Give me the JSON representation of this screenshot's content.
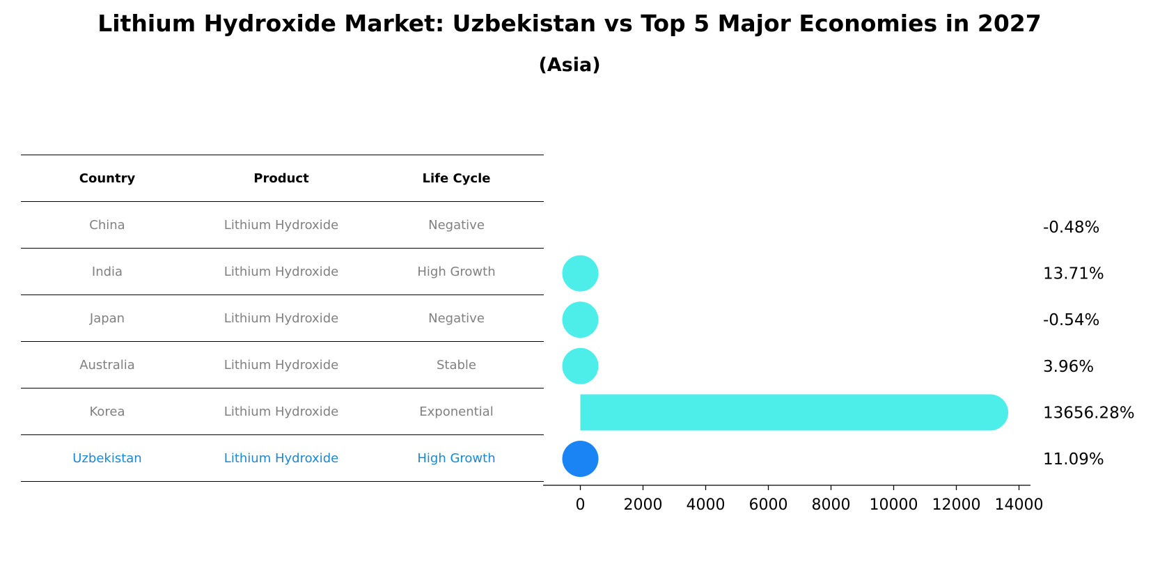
{
  "chart_data": {
    "type": "bar",
    "title": "Lithium Hydroxide Market: Uzbekistan vs Top 5 Major Economies in 2027",
    "subtitle": "(Asia)",
    "table": {
      "headers": [
        "Country",
        "Product",
        "Life Cycle"
      ],
      "rows": [
        {
          "country": "China",
          "product": "Lithium Hydroxide",
          "life_cycle": "Negative"
        },
        {
          "country": "India",
          "product": "Lithium Hydroxide",
          "life_cycle": "High Growth"
        },
        {
          "country": "Japan",
          "product": "Lithium Hydroxide",
          "life_cycle": "Negative"
        },
        {
          "country": "Australia",
          "product": "Lithium Hydroxide",
          "life_cycle": "Stable"
        },
        {
          "country": "Korea",
          "product": "Lithium Hydroxide",
          "life_cycle": "Exponential"
        },
        {
          "country": "Uzbekistan",
          "product": "Lithium Hydroxide",
          "life_cycle": "High Growth"
        }
      ]
    },
    "categories": [
      "China",
      "India",
      "Japan",
      "Australia",
      "Korea",
      "Uzbekistan"
    ],
    "values": [
      -0.48,
      13.71,
      -0.54,
      3.96,
      13656.28,
      11.09
    ],
    "value_labels": [
      "-0.48%",
      "13.71%",
      "-0.54%",
      "3.96%",
      "13656.28%",
      "11.09%"
    ],
    "highlight": "Uzbekistan",
    "xlim": [
      -700,
      14300
    ],
    "xticks": [
      0,
      2000,
      4000,
      6000,
      8000,
      10000,
      12000,
      14000
    ],
    "colors": {
      "bar": "#4deeea",
      "highlight": "#1a84f4",
      "highlight_text": "#1a88d6",
      "text_muted": "#808080"
    }
  }
}
